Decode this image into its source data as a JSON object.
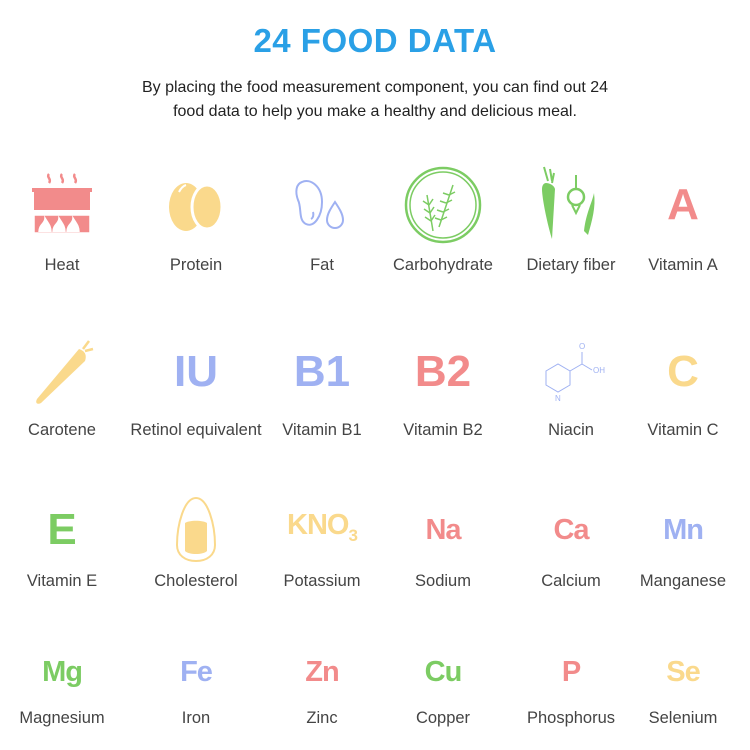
{
  "header": {
    "title": "24 FOOD DATA",
    "subtitle_line1": "By placing the food measurement component, you can find out 24",
    "subtitle_line2": "food data to help you make a healthy and delicious meal."
  },
  "colors": {
    "title": "#2aa0e6",
    "pink": "#f28b8b",
    "yellow": "#fad98c",
    "blue": "#9fb1f2",
    "green": "#7ccc63"
  },
  "items": [
    {
      "label": "Heat",
      "icon": "cooking-pot-icon",
      "color": "#f28b8b"
    },
    {
      "label": "Protein",
      "icon": "eggs-icon",
      "color": "#fad98c"
    },
    {
      "label": "Fat",
      "icon": "oil-drops-icon",
      "color": "#9fb1f2"
    },
    {
      "label": "Carbohydrate",
      "icon": "wheat-icon",
      "color": "#7ccc63"
    },
    {
      "label": "Dietary fiber",
      "icon": "vegetables-icon",
      "color": "#7ccc63"
    },
    {
      "label": "Vitamin A",
      "symbol": "A",
      "color": "#f28b8b"
    },
    {
      "label": "Carotene",
      "icon": "carrot-icon",
      "color": "#fad98c"
    },
    {
      "label": "Retinol equivalent",
      "symbol": "IU",
      "color": "#9fb1f2"
    },
    {
      "label": "Vitamin B1",
      "symbol": "B1",
      "color": "#9fb1f2"
    },
    {
      "label": "Vitamin B2",
      "symbol": "B2",
      "color": "#f28b8b"
    },
    {
      "label": "Niacin",
      "icon": "niacin-molecule-icon",
      "color": "#9fb1f2",
      "molecule_text": "OH",
      "molecule_o": "O",
      "molecule_n": "N"
    },
    {
      "label": "Vitamin C",
      "symbol": "C",
      "color": "#fad98c"
    },
    {
      "label": "Vitamin E",
      "symbol": "E",
      "color": "#7ccc63"
    },
    {
      "label": "Cholesterol",
      "icon": "egg-yolk-icon",
      "color": "#fad98c"
    },
    {
      "label": "Potassium",
      "symbol": "KNO",
      "symbol_sub": "3",
      "color": "#fad98c"
    },
    {
      "label": "Sodium",
      "symbol": "Na",
      "color": "#f28b8b"
    },
    {
      "label": "Calcium",
      "symbol": "Ca",
      "color": "#f28b8b"
    },
    {
      "label": "Manganese",
      "symbol": "Mn",
      "color": "#9fb1f2"
    },
    {
      "label": "Magnesium",
      "symbol": "Mg",
      "color": "#7ccc63"
    },
    {
      "label": "Iron",
      "symbol": "Fe",
      "color": "#9fb1f2"
    },
    {
      "label": "Zinc",
      "symbol": "Zn",
      "color": "#f28b8b"
    },
    {
      "label": "Copper",
      "symbol": "Cu",
      "color": "#7ccc63"
    },
    {
      "label": "Phosphorus",
      "symbol": "P",
      "color": "#f28b8b"
    },
    {
      "label": "Selenium",
      "symbol": "Se",
      "color": "#fad98c"
    }
  ]
}
